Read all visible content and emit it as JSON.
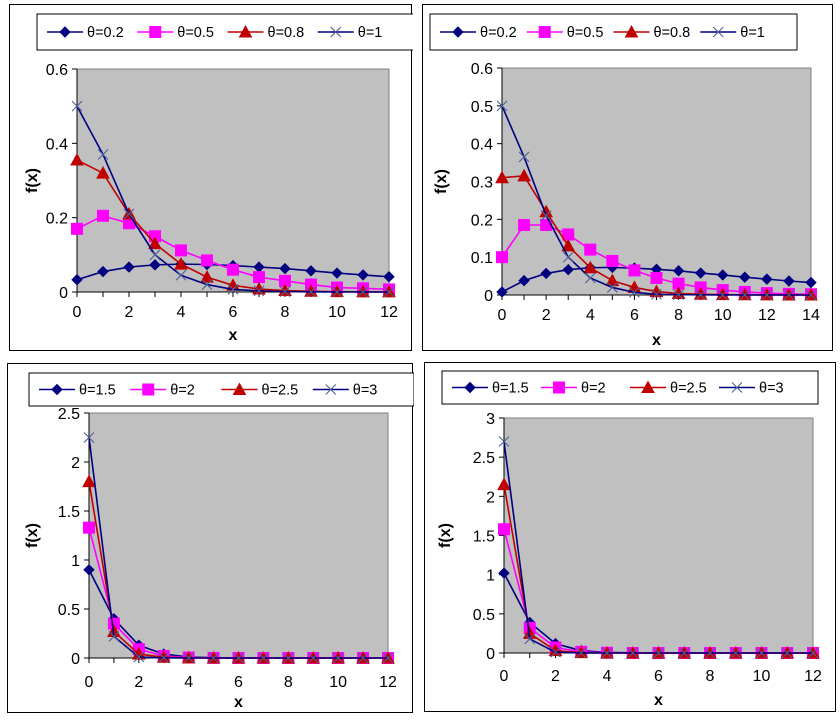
{
  "chart_data": [
    {
      "type": "line",
      "title": "",
      "xlabel": "x",
      "ylabel": "f(x)",
      "xlim": [
        0,
        12
      ],
      "ylim": [
        0,
        0.6
      ],
      "x_ticks": [
        "0",
        "2",
        "4",
        "6",
        "8",
        "10",
        "12"
      ],
      "y_ticks": [
        "0",
        "0.2",
        "0.4",
        "0.6"
      ],
      "grid": false,
      "legend_position": "top",
      "x": [
        0,
        1,
        2,
        3,
        4,
        5,
        6,
        7,
        8,
        9,
        10,
        11,
        12
      ],
      "series": [
        {
          "name": "θ=0.2",
          "color": "#000080",
          "marker": "diamond",
          "values": [
            0.033,
            0.055,
            0.067,
            0.073,
            0.075,
            0.074,
            0.071,
            0.067,
            0.063,
            0.057,
            0.051,
            0.046,
            0.041
          ]
        },
        {
          "name": "θ=0.5",
          "color": "#ff00ff",
          "marker": "square",
          "values": [
            0.17,
            0.205,
            0.185,
            0.15,
            0.112,
            0.085,
            0.06,
            0.04,
            0.03,
            0.02,
            0.012,
            0.01,
            0.007
          ]
        },
        {
          "name": "θ=0.8",
          "color": "#c00000",
          "marker": "triangle",
          "values": [
            0.355,
            0.32,
            0.21,
            0.13,
            0.075,
            0.04,
            0.018,
            0.008,
            0.004,
            0.002,
            0.001,
            0.0005,
            0.0002
          ]
        },
        {
          "name": "θ=1",
          "color": "#000080",
          "marker": "x",
          "values": [
            0.5,
            0.37,
            0.21,
            0.1,
            0.045,
            0.02,
            0.007,
            0.003,
            0.001,
            0.0004,
            0.0001,
            0.0,
            0.0
          ]
        }
      ]
    },
    {
      "type": "line",
      "title": "",
      "xlabel": "x",
      "ylabel": "f(x)",
      "xlim": [
        0,
        14
      ],
      "ylim": [
        0,
        0.6
      ],
      "x_ticks": [
        "0",
        "2",
        "4",
        "6",
        "8",
        "10",
        "12",
        "14"
      ],
      "y_ticks": [
        "0",
        "0.1",
        "0.2",
        "0.3",
        "0.4",
        "0.5",
        "0.6"
      ],
      "grid": false,
      "legend_position": "top",
      "x": [
        0,
        1,
        2,
        3,
        4,
        5,
        6,
        7,
        8,
        9,
        10,
        11,
        12,
        13,
        14
      ],
      "series": [
        {
          "name": "θ=0.2",
          "color": "#000080",
          "marker": "diamond",
          "values": [
            0.008,
            0.038,
            0.057,
            0.067,
            0.072,
            0.073,
            0.071,
            0.068,
            0.064,
            0.058,
            0.053,
            0.047,
            0.042,
            0.037,
            0.033
          ]
        },
        {
          "name": "θ=0.5",
          "color": "#ff00ff",
          "marker": "square",
          "values": [
            0.1,
            0.185,
            0.185,
            0.16,
            0.12,
            0.09,
            0.065,
            0.045,
            0.03,
            0.02,
            0.013,
            0.008,
            0.005,
            0.003,
            0.002
          ]
        },
        {
          "name": "θ=0.8",
          "color": "#c00000",
          "marker": "triangle",
          "values": [
            0.31,
            0.315,
            0.22,
            0.13,
            0.072,
            0.038,
            0.02,
            0.009,
            0.004,
            0.002,
            0.001,
            0.0005,
            0.0002,
            0.0001,
            0.0
          ]
        },
        {
          "name": "θ=1",
          "color": "#000080",
          "marker": "x",
          "values": [
            0.5,
            0.365,
            0.21,
            0.1,
            0.045,
            0.02,
            0.007,
            0.002,
            0.001,
            0.0003,
            0.0001,
            0.0,
            0.0,
            0.0,
            0.0
          ]
        }
      ]
    },
    {
      "type": "line",
      "title": "",
      "xlabel": "x",
      "ylabel": "f(x)",
      "xlim": [
        0,
        12
      ],
      "ylim": [
        0,
        2.5
      ],
      "x_ticks": [
        "0",
        "2",
        "4",
        "6",
        "8",
        "10",
        "12"
      ],
      "y_ticks": [
        "0",
        "0.5",
        "1",
        "1.5",
        "2",
        "2.5"
      ],
      "grid": false,
      "legend_position": "top",
      "x": [
        0,
        1,
        2,
        3,
        4,
        5,
        6,
        7,
        8,
        9,
        10,
        11,
        12
      ],
      "series": [
        {
          "name": "θ=1.5",
          "color": "#000080",
          "marker": "diamond",
          "values": [
            0.9,
            0.4,
            0.13,
            0.04,
            0.01,
            0.003,
            0.001,
            0,
            0,
            0,
            0,
            0,
            0
          ]
        },
        {
          "name": "θ=2",
          "color": "#ff00ff",
          "marker": "square",
          "values": [
            1.33,
            0.35,
            0.09,
            0.02,
            0.005,
            0.001,
            0,
            0,
            0,
            0,
            0,
            0,
            0
          ]
        },
        {
          "name": "θ=2.5",
          "color": "#c00000",
          "marker": "triangle",
          "values": [
            1.8,
            0.27,
            0.04,
            0.008,
            0.001,
            0,
            0,
            0,
            0,
            0,
            0,
            0,
            0
          ]
        },
        {
          "name": "θ=3",
          "color": "#000080",
          "marker": "x",
          "values": [
            2.25,
            0.22,
            0.01,
            0.002,
            0,
            0,
            0,
            0,
            0,
            0,
            0,
            0,
            0
          ]
        }
      ]
    },
    {
      "type": "line",
      "title": "",
      "xlabel": "x",
      "ylabel": "f(x)",
      "xlim": [
        0,
        12
      ],
      "ylim": [
        0,
        3
      ],
      "x_ticks": [
        "0",
        "2",
        "4",
        "6",
        "8",
        "10",
        "12"
      ],
      "y_ticks": [
        "0",
        "0.5",
        "1",
        "1.5",
        "2",
        "2.5",
        "3"
      ],
      "grid": false,
      "legend_position": "top",
      "x": [
        0,
        1,
        2,
        3,
        4,
        5,
        6,
        7,
        8,
        9,
        10,
        11,
        12
      ],
      "series": [
        {
          "name": "θ=1.5",
          "color": "#000080",
          "marker": "diamond",
          "values": [
            1.02,
            0.39,
            0.12,
            0.03,
            0.008,
            0.002,
            0,
            0,
            0,
            0,
            0,
            0,
            0
          ]
        },
        {
          "name": "θ=2",
          "color": "#ff00ff",
          "marker": "square",
          "values": [
            1.58,
            0.32,
            0.07,
            0.015,
            0.003,
            0,
            0,
            0,
            0,
            0,
            0,
            0,
            0
          ]
        },
        {
          "name": "θ=2.5",
          "color": "#c00000",
          "marker": "triangle",
          "values": [
            2.15,
            0.25,
            0.03,
            0.004,
            0,
            0,
            0,
            0,
            0,
            0,
            0,
            0,
            0
          ]
        },
        {
          "name": "θ=3",
          "color": "#000080",
          "marker": "x",
          "values": [
            2.7,
            0.18,
            0.01,
            0.001,
            0,
            0,
            0,
            0,
            0,
            0,
            0,
            0,
            0
          ]
        }
      ]
    }
  ]
}
